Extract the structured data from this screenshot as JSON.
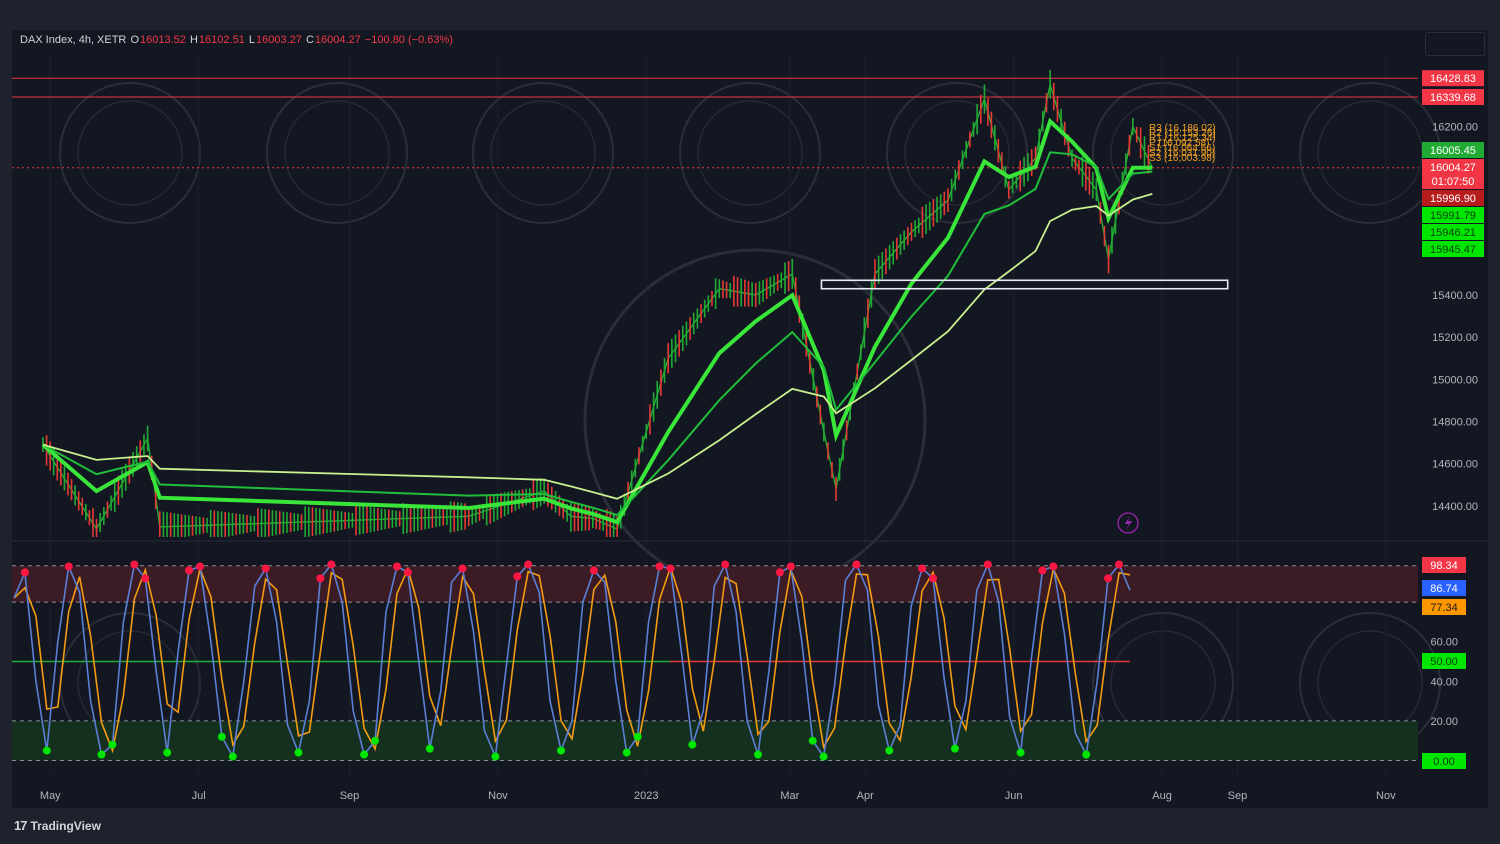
{
  "header": {
    "symbol": "DAX Index, 4h, XETR",
    "open_label": "O",
    "open": "16013.52",
    "high_label": "H",
    "high": "16102.51",
    "low_label": "L",
    "low": "16003.27",
    "close_label": "C",
    "close": "16004.27",
    "change": "−100.80 (−0.63%)"
  },
  "footer": {
    "brand": "TradingView"
  },
  "colors": {
    "background": "#131722",
    "up": "#22ab34",
    "down": "#e53935",
    "ma_bright": "#39e639",
    "ma_light": "#c8f08f",
    "stoch_k": "#5b7fd6",
    "stoch_d": "#f39c12",
    "zone_box": "#e8eaf6",
    "pivot_text": "#f0a020"
  },
  "chart_data": [
    {
      "type": "line",
      "title": "DAX Index, 4h, XETR",
      "x_ticks": [
        "May",
        "Jul",
        "Sep",
        "Nov",
        "2023",
        "Mar",
        "Apr",
        "Jun",
        "Aug",
        "Sep",
        "Nov"
      ],
      "y_ticks": [
        14400,
        14600,
        14800,
        15000,
        15200,
        15400,
        16200
      ],
      "ylim": [
        14250,
        16600
      ],
      "price_approx": {
        "x": [
          "2022-04-28",
          "2022-05-20",
          "2022-06-10",
          "2022-06-15",
          "2022-10-20",
          "2022-11-20",
          "2022-12-01",
          "2022-12-10",
          "2022-12-20",
          "2023-01-10",
          "2023-01-31",
          "2023-02-15",
          "2023-03-02",
          "2023-03-15",
          "2023-03-20",
          "2023-04-05",
          "2023-04-20",
          "2023-05-05",
          "2023-05-20",
          "2023-05-30",
          "2023-06-10",
          "2023-06-16",
          "2023-06-25",
          "2023-07-05",
          "2023-07-10",
          "2023-07-20",
          "2023-07-28"
        ],
        "y": [
          14690,
          14290,
          14720,
          14300,
          14350,
          14470,
          14350,
          14340,
          14290,
          15100,
          15430,
          15400,
          15500,
          14750,
          14480,
          15500,
          15700,
          15850,
          16330,
          15900,
          16050,
          16400,
          16050,
          15900,
          15570,
          16200,
          16004
        ]
      },
      "price_lines": [
        {
          "label": "16428.83",
          "value": 16428.83,
          "color": "#f23645"
        },
        {
          "label": "16339.68",
          "value": 16339.68,
          "color": "#f23645"
        },
        {
          "label": "16004.27",
          "value": 16004.27,
          "color": "#f23645"
        }
      ],
      "axis_tags": [
        {
          "text": "16005.45",
          "value": 16005.45,
          "bg": "#22ab34",
          "fg": "#ffffff"
        },
        {
          "text": "16004.27",
          "sub": "01:07:50",
          "value": 16004.27,
          "bg": "#f23645",
          "fg": "#ffffff"
        },
        {
          "text": "15996.90",
          "value": 15996.9,
          "bg": "#b71c1c",
          "fg": "#ffffff"
        },
        {
          "text": "15991.79",
          "value": 15991.79,
          "bg": "#00e600",
          "fg": "#0b3d0b"
        },
        {
          "text": "15946.21",
          "value": 15946.21,
          "bg": "#00e600",
          "fg": "#0b3d0b"
        },
        {
          "text": "15945.47",
          "value": 15945.47,
          "bg": "#00e600",
          "fg": "#0b3d0b"
        }
      ],
      "pivots": [
        {
          "label": "R3 (16,186.02)",
          "value": 16186.02
        },
        {
          "label": "R2 (16,153.26)",
          "value": 16153.26
        },
        {
          "label": "R1 (16,125.34)",
          "value": 16125.34
        },
        {
          "label": "P (16,092.58)",
          "value": 16092.58
        },
        {
          "label": "S1 (16,064.66)",
          "value": 16064.66
        },
        {
          "label": "S2 (16,031.90)",
          "value": 16031.9
        },
        {
          "label": "S3 (16,003.98)",
          "value": 16003.98
        }
      ],
      "support_zone": {
        "x0": "2023-03-14",
        "x1": "2023-08-28",
        "y_top": 15470,
        "y_bottom": 15430
      }
    },
    {
      "type": "line",
      "y_ticks": [
        60.0,
        40.0,
        20.0
      ],
      "ylim": [
        0,
        100
      ],
      "levels": [
        98.34,
        80,
        20,
        0
      ],
      "axis_tags": [
        {
          "text": "98.34",
          "value": 98.34,
          "bg": "#f23645",
          "fg": "#ffffff"
        },
        {
          "text": "86.74",
          "value": 86.74,
          "bg": "#2962ff",
          "fg": "#ffffff"
        },
        {
          "text": "77.34",
          "value": 77.34,
          "bg": "#ff9800",
          "fg": "#1a1a1a"
        },
        {
          "text": "50.00",
          "value": 50.0,
          "bg": "#00e600",
          "fg": "#0b3d0b"
        },
        {
          "text": "0.00",
          "value": 0.0,
          "bg": "#00e600",
          "fg": "#0b3d0b"
        }
      ],
      "series": [
        {
          "values": [
            82,
            95,
            40,
            5,
            60,
            98,
            85,
            30,
            3,
            8,
            70,
            99,
            92,
            45,
            4,
            55,
            96,
            98,
            60,
            12,
            2,
            40,
            88,
            97,
            70,
            18,
            4,
            30,
            92,
            99,
            80,
            25,
            3,
            10,
            75,
            98,
            95,
            50,
            6,
            35,
            90,
            97,
            65,
            15,
            2,
            48,
            93,
            99,
            85,
            30,
            5,
            20,
            80,
            96,
            90,
            40,
            4,
            12,
            70,
            98,
            97,
            55,
            8,
            25,
            88,
            99,
            75,
            20,
            3,
            45,
            95,
            98,
            60,
            10,
            2,
            38,
            91,
            99,
            86,
            28,
            5,
            18,
            78,
            97,
            92,
            42,
            6,
            30,
            86,
            99,
            80,
            22,
            4,
            52,
            96,
            98,
            64,
            14,
            3,
            40,
            92,
            99,
            86
          ]
        }
      ]
    }
  ]
}
